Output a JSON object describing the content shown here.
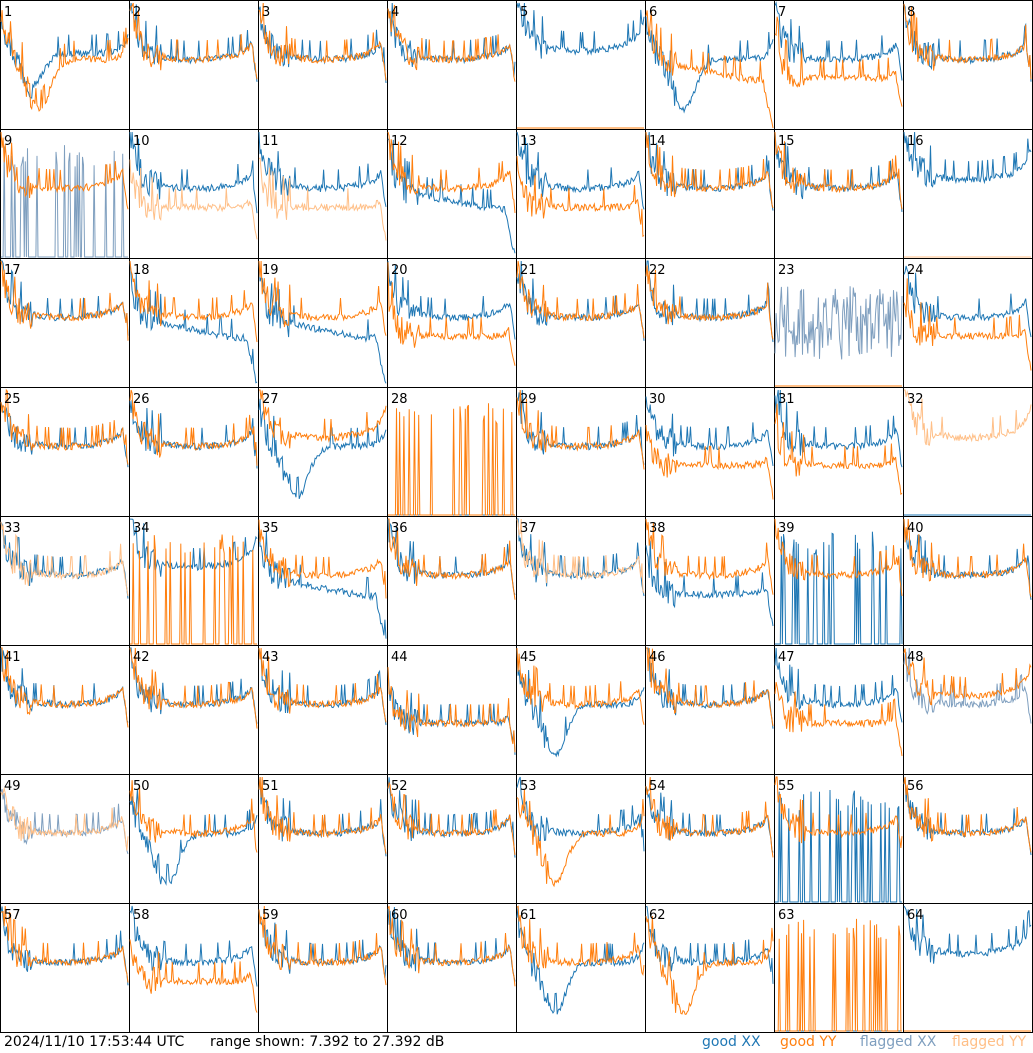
{
  "footer": {
    "timestamp": "2024/11/10 17:53:44 UTC",
    "range_text": "range shown: 7.392 to 27.392 dB"
  },
  "legend": {
    "good_xx": "good XX",
    "good_yy": "good YY",
    "flagged_xx": "flagged XX",
    "flagged_yy": "flagged YY"
  },
  "colors": {
    "good_xx": "#1f77b4",
    "good_yy": "#ff7f0e",
    "flagged_xx": "#7f9fbf",
    "flagged_yy": "#ffbf87"
  },
  "chart_data": {
    "type": "line",
    "ylim": [
      7.392,
      27.392
    ],
    "panels": [
      {
        "label": "1",
        "xx": {
          "status": "good",
          "profile": "dip",
          "level": 0.6
        },
        "yy": {
          "status": "good",
          "profile": "deepdip",
          "level": 0.6
        }
      },
      {
        "label": "2",
        "xx": {
          "status": "good",
          "profile": "bowl",
          "level": 0.62
        },
        "yy": {
          "status": "good",
          "profile": "bowl",
          "level": 0.6
        }
      },
      {
        "label": "3",
        "xx": {
          "status": "good",
          "profile": "bowl",
          "level": 0.58
        },
        "yy": {
          "status": "good",
          "profile": "bowl",
          "level": 0.6
        }
      },
      {
        "label": "4",
        "xx": {
          "status": "good",
          "profile": "bowl",
          "level": 0.62
        },
        "yy": {
          "status": "good",
          "profile": "bowl",
          "level": 0.6
        }
      },
      {
        "label": "5",
        "xx": {
          "status": "good",
          "profile": "bowlhigh",
          "level": 0.62
        },
        "yy": {
          "status": "good",
          "profile": "flat0",
          "level": 0.0
        }
      },
      {
        "label": "6",
        "xx": {
          "status": "good",
          "profile": "deepdip",
          "level": 0.5
        },
        "yy": {
          "status": "good",
          "profile": "decay",
          "level": 0.55
        }
      },
      {
        "label": "7",
        "xx": {
          "status": "good",
          "profile": "bowl",
          "level": 0.62
        },
        "yy": {
          "status": "good",
          "profile": "lowflat",
          "level": 0.45
        }
      },
      {
        "label": "8",
        "xx": {
          "status": "good",
          "profile": "bowl",
          "level": 0.6
        },
        "yy": {
          "status": "good",
          "profile": "bowl",
          "level": 0.58
        }
      },
      {
        "label": "9",
        "xx": {
          "status": "flagged",
          "profile": "spiky0",
          "level": 0.0
        },
        "yy": {
          "status": "good",
          "profile": "bowl",
          "level": 0.6
        }
      },
      {
        "label": "10",
        "xx": {
          "status": "good",
          "profile": "bowl",
          "level": 0.6
        },
        "yy": {
          "status": "flagged",
          "profile": "lowflat",
          "level": 0.4
        }
      },
      {
        "label": "11",
        "xx": {
          "status": "good",
          "profile": "bowl",
          "level": 0.6
        },
        "yy": {
          "status": "flagged",
          "profile": "lowflat",
          "level": 0.35
        }
      },
      {
        "label": "12",
        "xx": {
          "status": "good",
          "profile": "decay",
          "level": 0.55
        },
        "yy": {
          "status": "good",
          "profile": "bowl",
          "level": 0.58
        }
      },
      {
        "label": "13",
        "xx": {
          "status": "good",
          "profile": "bowl",
          "level": 0.55
        },
        "yy": {
          "status": "good",
          "profile": "lowflat",
          "level": 0.35
        }
      },
      {
        "label": "14",
        "xx": {
          "status": "good",
          "profile": "bowl",
          "level": 0.62
        },
        "yy": {
          "status": "good",
          "profile": "bowl",
          "level": 0.62
        }
      },
      {
        "label": "15",
        "xx": {
          "status": "good",
          "profile": "bowl",
          "level": 0.6
        },
        "yy": {
          "status": "good",
          "profile": "bowl",
          "level": 0.6
        }
      },
      {
        "label": "16",
        "xx": {
          "status": "good",
          "profile": "bowlhigh",
          "level": 0.62
        },
        "yy": {
          "status": "flagged",
          "profile": "flat0",
          "level": 0.0
        }
      },
      {
        "label": "17",
        "xx": {
          "status": "good",
          "profile": "bowl",
          "level": 0.6
        },
        "yy": {
          "status": "good",
          "profile": "bowl",
          "level": 0.6
        }
      },
      {
        "label": "18",
        "xx": {
          "status": "good",
          "profile": "decay",
          "level": 0.5
        },
        "yy": {
          "status": "good",
          "profile": "bowl",
          "level": 0.6
        }
      },
      {
        "label": "19",
        "xx": {
          "status": "good",
          "profile": "decay",
          "level": 0.45
        },
        "yy": {
          "status": "good",
          "profile": "bowl",
          "level": 0.62
        }
      },
      {
        "label": "20",
        "xx": {
          "status": "good",
          "profile": "bowl",
          "level": 0.6
        },
        "yy": {
          "status": "good",
          "profile": "lowflat",
          "level": 0.48
        }
      },
      {
        "label": "21",
        "xx": {
          "status": "good",
          "profile": "bowl",
          "level": 0.6
        },
        "yy": {
          "status": "good",
          "profile": "bowl",
          "level": 0.58
        }
      },
      {
        "label": "22",
        "xx": {
          "status": "good",
          "profile": "bowl",
          "level": 0.6
        },
        "yy": {
          "status": "good",
          "profile": "bowl",
          "level": 0.58
        }
      },
      {
        "label": "23",
        "xx": {
          "status": "flagged",
          "profile": "noisy",
          "level": 0.4
        },
        "yy": {
          "status": "good",
          "profile": "flat0",
          "level": 0.0
        }
      },
      {
        "label": "24",
        "xx": {
          "status": "good",
          "profile": "bowl",
          "level": 0.58
        },
        "yy": {
          "status": "good",
          "profile": "lowflat",
          "level": 0.4
        }
      },
      {
        "label": "25",
        "xx": {
          "status": "good",
          "profile": "bowl",
          "level": 0.6
        },
        "yy": {
          "status": "good",
          "profile": "bowl",
          "level": 0.6
        }
      },
      {
        "label": "26",
        "xx": {
          "status": "good",
          "profile": "bowl",
          "level": 0.6
        },
        "yy": {
          "status": "good",
          "profile": "bowl",
          "level": 0.58
        }
      },
      {
        "label": "27",
        "xx": {
          "status": "good",
          "profile": "deepdip",
          "level": 0.5
        },
        "yy": {
          "status": "good",
          "profile": "bowlhigh",
          "level": 0.65
        }
      },
      {
        "label": "28",
        "xx": {
          "status": "good",
          "profile": "flat0",
          "level": 0.0
        },
        "yy": {
          "status": "good",
          "profile": "spiky0",
          "level": 0.0
        }
      },
      {
        "label": "29",
        "xx": {
          "status": "good",
          "profile": "bowl",
          "level": 0.6
        },
        "yy": {
          "status": "good",
          "profile": "bowl",
          "level": 0.6
        }
      },
      {
        "label": "30",
        "xx": {
          "status": "good",
          "profile": "bowl",
          "level": 0.55
        },
        "yy": {
          "status": "good",
          "profile": "lowflat",
          "level": 0.45
        }
      },
      {
        "label": "31",
        "xx": {
          "status": "good",
          "profile": "bowl",
          "level": 0.58
        },
        "yy": {
          "status": "good",
          "profile": "lowflat",
          "level": 0.35
        }
      },
      {
        "label": "32",
        "xx": {
          "status": "good",
          "profile": "flat0",
          "level": 0.0
        },
        "yy": {
          "status": "flagged",
          "profile": "bowlhigh",
          "level": 0.55
        }
      },
      {
        "label": "33",
        "xx": {
          "status": "good",
          "profile": "bowl",
          "level": 0.62
        },
        "yy": {
          "status": "flagged",
          "profile": "bowl",
          "level": 0.6
        }
      },
      {
        "label": "34",
        "xx": {
          "status": "good",
          "profile": "bowlhigh",
          "level": 0.62
        },
        "yy": {
          "status": "good",
          "profile": "spiky0",
          "level": 0.0
        }
      },
      {
        "label": "35",
        "xx": {
          "status": "good",
          "profile": "decay",
          "level": 0.45
        },
        "yy": {
          "status": "good",
          "profile": "bowl",
          "level": 0.6
        }
      },
      {
        "label": "36",
        "xx": {
          "status": "good",
          "profile": "bowl",
          "level": 0.6
        },
        "yy": {
          "status": "good",
          "profile": "bowl",
          "level": 0.6
        }
      },
      {
        "label": "37",
        "xx": {
          "status": "good",
          "profile": "bowl",
          "level": 0.6
        },
        "yy": {
          "status": "flagged",
          "profile": "bowl",
          "level": 0.6
        }
      },
      {
        "label": "38",
        "xx": {
          "status": "good",
          "profile": "lowflat",
          "level": 0.5
        },
        "yy": {
          "status": "good",
          "profile": "bowl",
          "level": 0.6
        }
      },
      {
        "label": "39",
        "xx": {
          "status": "good",
          "profile": "spiky0",
          "level": 0.0
        },
        "yy": {
          "status": "good",
          "profile": "bowl",
          "level": 0.6
        }
      },
      {
        "label": "40",
        "xx": {
          "status": "good",
          "profile": "bowl",
          "level": 0.58
        },
        "yy": {
          "status": "good",
          "profile": "bowl",
          "level": 0.6
        }
      },
      {
        "label": "41",
        "xx": {
          "status": "good",
          "profile": "bowl",
          "level": 0.55
        },
        "yy": {
          "status": "good",
          "profile": "bowl",
          "level": 0.6
        }
      },
      {
        "label": "42",
        "xx": {
          "status": "good",
          "profile": "bowl",
          "level": 0.6
        },
        "yy": {
          "status": "good",
          "profile": "bowl",
          "level": 0.6
        }
      },
      {
        "label": "43",
        "xx": {
          "status": "good",
          "profile": "bowl",
          "level": 0.6
        },
        "yy": {
          "status": "good",
          "profile": "bowl",
          "level": 0.6
        }
      },
      {
        "label": "44",
        "xx": {
          "status": "good",
          "profile": "lowflat",
          "level": 0.5
        },
        "yy": {
          "status": "good",
          "profile": "lowflat",
          "level": 0.48
        }
      },
      {
        "label": "45",
        "xx": {
          "status": "good",
          "profile": "deepdip",
          "level": 0.45
        },
        "yy": {
          "status": "good",
          "profile": "bowl",
          "level": 0.5
        }
      },
      {
        "label": "46",
        "xx": {
          "status": "good",
          "profile": "bowl",
          "level": 0.6
        },
        "yy": {
          "status": "good",
          "profile": "bowl",
          "level": 0.6
        }
      },
      {
        "label": "47",
        "xx": {
          "status": "good",
          "profile": "bowl",
          "level": 0.55
        },
        "yy": {
          "status": "good",
          "profile": "lowflat",
          "level": 0.4
        }
      },
      {
        "label": "48",
        "xx": {
          "status": "flagged",
          "profile": "bowl",
          "level": 0.45
        },
        "yy": {
          "status": "good",
          "profile": "bowlhigh",
          "level": 0.55
        }
      },
      {
        "label": "49",
        "xx": {
          "status": "flagged",
          "profile": "bowl",
          "level": 0.6
        },
        "yy": {
          "status": "flagged",
          "profile": "bowl",
          "level": 0.6
        }
      },
      {
        "label": "50",
        "xx": {
          "status": "good",
          "profile": "deepdip",
          "level": 0.45
        },
        "yy": {
          "status": "good",
          "profile": "bowl",
          "level": 0.6
        }
      },
      {
        "label": "51",
        "xx": {
          "status": "good",
          "profile": "bowl",
          "level": 0.6
        },
        "yy": {
          "status": "good",
          "profile": "bowl",
          "level": 0.6
        }
      },
      {
        "label": "52",
        "xx": {
          "status": "good",
          "profile": "bowl",
          "level": 0.6
        },
        "yy": {
          "status": "good",
          "profile": "bowl",
          "level": 0.58
        }
      },
      {
        "label": "53",
        "xx": {
          "status": "good",
          "profile": "bowl",
          "level": 0.55
        },
        "yy": {
          "status": "good",
          "profile": "deepdip",
          "level": 0.45
        }
      },
      {
        "label": "54",
        "xx": {
          "status": "good",
          "profile": "bowl",
          "level": 0.6
        },
        "yy": {
          "status": "good",
          "profile": "bowl",
          "level": 0.6
        }
      },
      {
        "label": "55",
        "xx": {
          "status": "good",
          "profile": "spiky0",
          "level": 0.0
        },
        "yy": {
          "status": "good",
          "profile": "bowl",
          "level": 0.6
        }
      },
      {
        "label": "56",
        "xx": {
          "status": "good",
          "profile": "bowl",
          "level": 0.58
        },
        "yy": {
          "status": "good",
          "profile": "bowl",
          "level": 0.55
        }
      },
      {
        "label": "57",
        "xx": {
          "status": "good",
          "profile": "bowl",
          "level": 0.55
        },
        "yy": {
          "status": "good",
          "profile": "bowl",
          "level": 0.6
        }
      },
      {
        "label": "58",
        "xx": {
          "status": "good",
          "profile": "bowl",
          "level": 0.55
        },
        "yy": {
          "status": "good",
          "profile": "lowflat",
          "level": 0.45
        }
      },
      {
        "label": "59",
        "xx": {
          "status": "good",
          "profile": "bowl",
          "level": 0.58
        },
        "yy": {
          "status": "good",
          "profile": "bowl",
          "level": 0.58
        }
      },
      {
        "label": "60",
        "xx": {
          "status": "good",
          "profile": "bowl",
          "level": 0.6
        },
        "yy": {
          "status": "good",
          "profile": "bowl",
          "level": 0.6
        }
      },
      {
        "label": "61",
        "xx": {
          "status": "good",
          "profile": "deepdip",
          "level": 0.5
        },
        "yy": {
          "status": "good",
          "profile": "bowl",
          "level": 0.6
        }
      },
      {
        "label": "62",
        "xx": {
          "status": "good",
          "profile": "bowl",
          "level": 0.6
        },
        "yy": {
          "status": "good",
          "profile": "deepdip",
          "level": 0.3
        }
      },
      {
        "label": "63",
        "xx": {
          "status": "good",
          "profile": "flat0",
          "level": 0.0
        },
        "yy": {
          "status": "good",
          "profile": "spiky0",
          "level": 0.0
        }
      },
      {
        "label": "64",
        "xx": {
          "status": "good",
          "profile": "bowlhigh",
          "level": 0.65
        },
        "yy": {
          "status": "good",
          "profile": "flat0",
          "level": 0.0
        }
      }
    ]
  }
}
